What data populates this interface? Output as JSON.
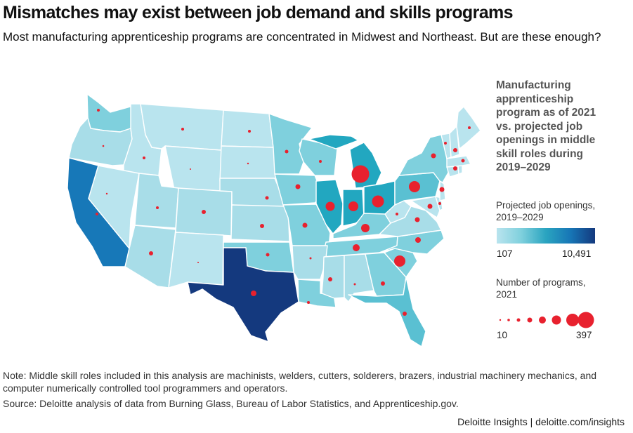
{
  "title": "Mismatches may exist between job demand and skills programs",
  "subtitle": "Most manufacturing apprenticeship programs are concentrated in Midwest and Northeast. But are these enough?",
  "legend": {
    "title": "Manufacturing apprenticeship program as of 2021 vs. projected job openings in middle skill roles during 2019–2029",
    "color_scale_label": "Projected job openings, 2019–2029",
    "color_min": "107",
    "color_max": "10,491",
    "bubble_label": "Number of programs, 2021",
    "bubble_min": "10",
    "bubble_max": "397"
  },
  "note": "Note: Middle skill roles included in this analysis are machinists, welders, cutters, solderers, brazers, industrial machinery mechanics, and computer numerically controlled tool programmers and operators.",
  "source": "Source: Deloitte analysis of data from Burning Glass, Bureau of Labor Statistics, and Apprenticeship.gov.",
  "credit": "Deloitte Insights | deloitte.com/insights",
  "colors": {
    "very_light": "#b9e4ee",
    "light": "#a8dde8",
    "medium_light": "#7fd0dd",
    "medium": "#5ac0d2",
    "teal": "#22a7c0",
    "blue": "#1778b8",
    "dark_navy": "#14397e",
    "bubble": "#e8212e"
  }
}
